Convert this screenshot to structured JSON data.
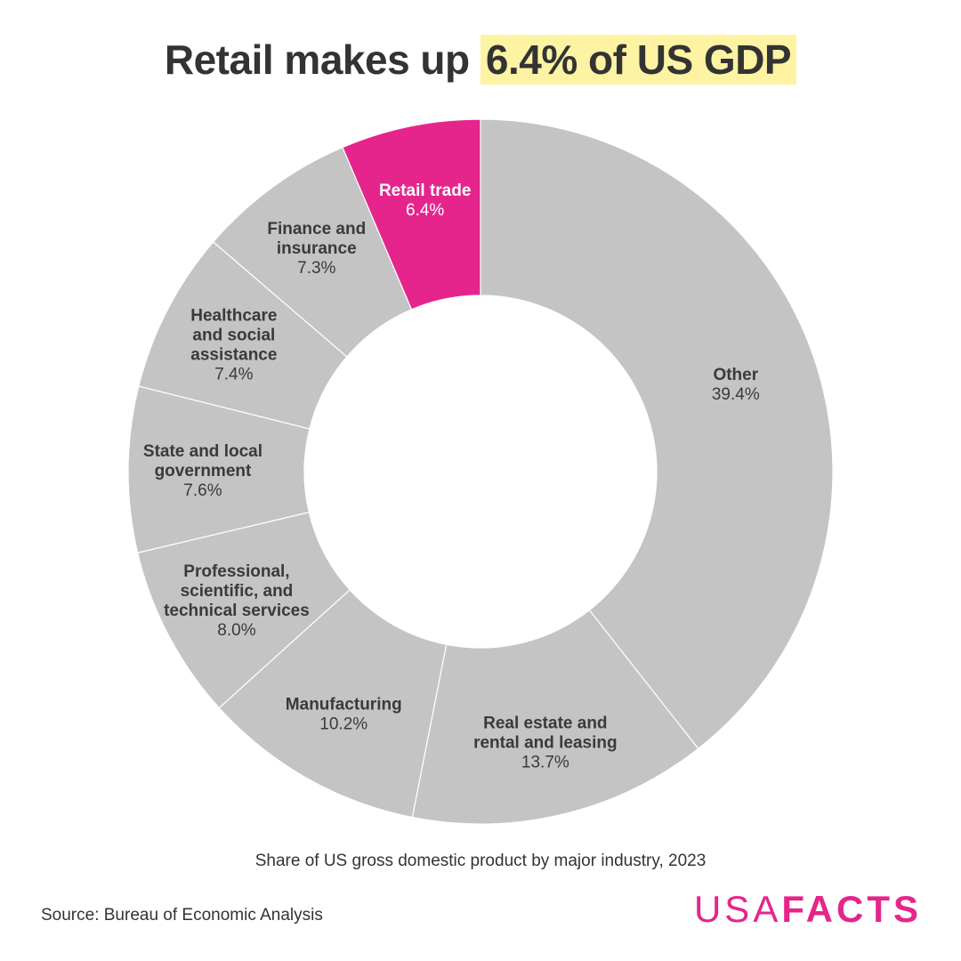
{
  "title": {
    "prefix": "Retail makes up",
    "highlight": "6.4% of US GDP"
  },
  "subtitle": "Share of US gross domestic product by major industry, 2023",
  "source": "Source: Bureau of Economic Analysis",
  "logo": {
    "usa": "USA",
    "facts": "FACTS"
  },
  "colors": {
    "highlight_slice": "#e5258c",
    "default_slice": "#c4c4c4",
    "title_highlight_bg": "#fdf3a3",
    "logo": "#e5258c"
  },
  "chart_data": {
    "type": "pie",
    "donut": true,
    "title": "Retail makes up 6.4% of US GDP",
    "subtitle": "Share of US gross domestic product by major industry, 2023",
    "unit": "%",
    "slices": [
      {
        "label": [
          "Other"
        ],
        "value": 39.4,
        "display": "39.4%",
        "highlight": false
      },
      {
        "label": [
          "Real estate and",
          "rental and leasing"
        ],
        "value": 13.7,
        "display": "13.7%",
        "highlight": false
      },
      {
        "label": [
          "Manufacturing"
        ],
        "value": 10.2,
        "display": "10.2%",
        "highlight": false
      },
      {
        "label": [
          "Professional,",
          "scientific, and",
          "technical services"
        ],
        "value": 8.0,
        "display": "8.0%",
        "highlight": false
      },
      {
        "label": [
          "State and local",
          "government"
        ],
        "value": 7.6,
        "display": "7.6%",
        "highlight": false
      },
      {
        "label": [
          "Healthcare",
          "and social",
          "assistance"
        ],
        "value": 7.4,
        "display": "7.4%",
        "highlight": false
      },
      {
        "label": [
          "Finance and",
          "insurance"
        ],
        "value": 7.3,
        "display": "7.3%",
        "highlight": false
      },
      {
        "label": [
          "Retail trade"
        ],
        "value": 6.4,
        "display": "6.4%",
        "highlight": true
      }
    ]
  }
}
